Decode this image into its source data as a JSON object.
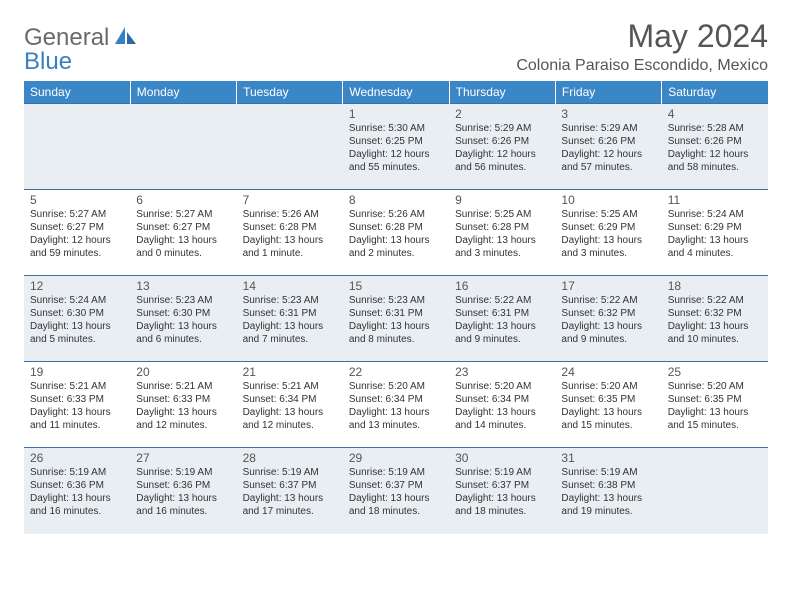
{
  "logo": {
    "part1": "General",
    "part2": "Blue"
  },
  "title": "May 2024",
  "location": "Colonia Paraiso Escondido, Mexico",
  "colors": {
    "header_bg": "#3a87c7",
    "header_text": "#ffffff",
    "row_border": "#3a6ea5",
    "shade_bg": "#e9eef3",
    "body_text": "#333333",
    "logo_gray": "#6a6a6a",
    "logo_blue": "#3a7fc2"
  },
  "weekdays": [
    "Sunday",
    "Monday",
    "Tuesday",
    "Wednesday",
    "Thursday",
    "Friday",
    "Saturday"
  ],
  "weeks": [
    [
      null,
      null,
      null,
      {
        "n": "1",
        "sr": "5:30 AM",
        "ss": "6:25 PM",
        "dl": "12 hours and 55 minutes."
      },
      {
        "n": "2",
        "sr": "5:29 AM",
        "ss": "6:26 PM",
        "dl": "12 hours and 56 minutes."
      },
      {
        "n": "3",
        "sr": "5:29 AM",
        "ss": "6:26 PM",
        "dl": "12 hours and 57 minutes."
      },
      {
        "n": "4",
        "sr": "5:28 AM",
        "ss": "6:26 PM",
        "dl": "12 hours and 58 minutes."
      }
    ],
    [
      {
        "n": "5",
        "sr": "5:27 AM",
        "ss": "6:27 PM",
        "dl": "12 hours and 59 minutes."
      },
      {
        "n": "6",
        "sr": "5:27 AM",
        "ss": "6:27 PM",
        "dl": "13 hours and 0 minutes."
      },
      {
        "n": "7",
        "sr": "5:26 AM",
        "ss": "6:28 PM",
        "dl": "13 hours and 1 minute."
      },
      {
        "n": "8",
        "sr": "5:26 AM",
        "ss": "6:28 PM",
        "dl": "13 hours and 2 minutes."
      },
      {
        "n": "9",
        "sr": "5:25 AM",
        "ss": "6:28 PM",
        "dl": "13 hours and 3 minutes."
      },
      {
        "n": "10",
        "sr": "5:25 AM",
        "ss": "6:29 PM",
        "dl": "13 hours and 3 minutes."
      },
      {
        "n": "11",
        "sr": "5:24 AM",
        "ss": "6:29 PM",
        "dl": "13 hours and 4 minutes."
      }
    ],
    [
      {
        "n": "12",
        "sr": "5:24 AM",
        "ss": "6:30 PM",
        "dl": "13 hours and 5 minutes."
      },
      {
        "n": "13",
        "sr": "5:23 AM",
        "ss": "6:30 PM",
        "dl": "13 hours and 6 minutes."
      },
      {
        "n": "14",
        "sr": "5:23 AM",
        "ss": "6:31 PM",
        "dl": "13 hours and 7 minutes."
      },
      {
        "n": "15",
        "sr": "5:23 AM",
        "ss": "6:31 PM",
        "dl": "13 hours and 8 minutes."
      },
      {
        "n": "16",
        "sr": "5:22 AM",
        "ss": "6:31 PM",
        "dl": "13 hours and 9 minutes."
      },
      {
        "n": "17",
        "sr": "5:22 AM",
        "ss": "6:32 PM",
        "dl": "13 hours and 9 minutes."
      },
      {
        "n": "18",
        "sr": "5:22 AM",
        "ss": "6:32 PM",
        "dl": "13 hours and 10 minutes."
      }
    ],
    [
      {
        "n": "19",
        "sr": "5:21 AM",
        "ss": "6:33 PM",
        "dl": "13 hours and 11 minutes."
      },
      {
        "n": "20",
        "sr": "5:21 AM",
        "ss": "6:33 PM",
        "dl": "13 hours and 12 minutes."
      },
      {
        "n": "21",
        "sr": "5:21 AM",
        "ss": "6:34 PM",
        "dl": "13 hours and 12 minutes."
      },
      {
        "n": "22",
        "sr": "5:20 AM",
        "ss": "6:34 PM",
        "dl": "13 hours and 13 minutes."
      },
      {
        "n": "23",
        "sr": "5:20 AM",
        "ss": "6:34 PM",
        "dl": "13 hours and 14 minutes."
      },
      {
        "n": "24",
        "sr": "5:20 AM",
        "ss": "6:35 PM",
        "dl": "13 hours and 15 minutes."
      },
      {
        "n": "25",
        "sr": "5:20 AM",
        "ss": "6:35 PM",
        "dl": "13 hours and 15 minutes."
      }
    ],
    [
      {
        "n": "26",
        "sr": "5:19 AM",
        "ss": "6:36 PM",
        "dl": "13 hours and 16 minutes."
      },
      {
        "n": "27",
        "sr": "5:19 AM",
        "ss": "6:36 PM",
        "dl": "13 hours and 16 minutes."
      },
      {
        "n": "28",
        "sr": "5:19 AM",
        "ss": "6:37 PM",
        "dl": "13 hours and 17 minutes."
      },
      {
        "n": "29",
        "sr": "5:19 AM",
        "ss": "6:37 PM",
        "dl": "13 hours and 18 minutes."
      },
      {
        "n": "30",
        "sr": "5:19 AM",
        "ss": "6:37 PM",
        "dl": "13 hours and 18 minutes."
      },
      {
        "n": "31",
        "sr": "5:19 AM",
        "ss": "6:38 PM",
        "dl": "13 hours and 19 minutes."
      },
      null
    ]
  ],
  "labels": {
    "sunrise": "Sunrise:",
    "sunset": "Sunset:",
    "daylight": "Daylight:"
  }
}
